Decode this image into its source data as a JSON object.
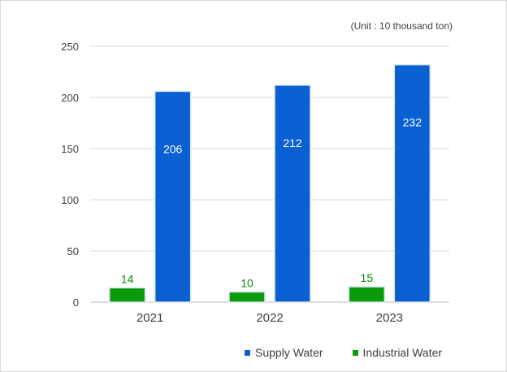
{
  "chart_data": {
    "type": "bar",
    "unit_note": "(Unit : 10 thousand ton)",
    "categories": [
      "2021",
      "2022",
      "2023"
    ],
    "series": [
      {
        "name": "Industrial Water",
        "values": [
          14,
          10,
          15
        ],
        "color": "#0a9a0a",
        "label_color": "#0a8a0a",
        "label_position": "above"
      },
      {
        "name": "Supply Water",
        "values": [
          206,
          212,
          232
        ],
        "color": "#0a5fd1",
        "label_color": "#ffffff",
        "label_position": "inside"
      }
    ],
    "ylim": [
      0,
      250
    ],
    "yticks": [
      0,
      50,
      100,
      150,
      200,
      250
    ],
    "grid": true,
    "legend": {
      "placement": "bottom-right",
      "order": [
        "Supply Water",
        "Industrial Water"
      ]
    }
  }
}
